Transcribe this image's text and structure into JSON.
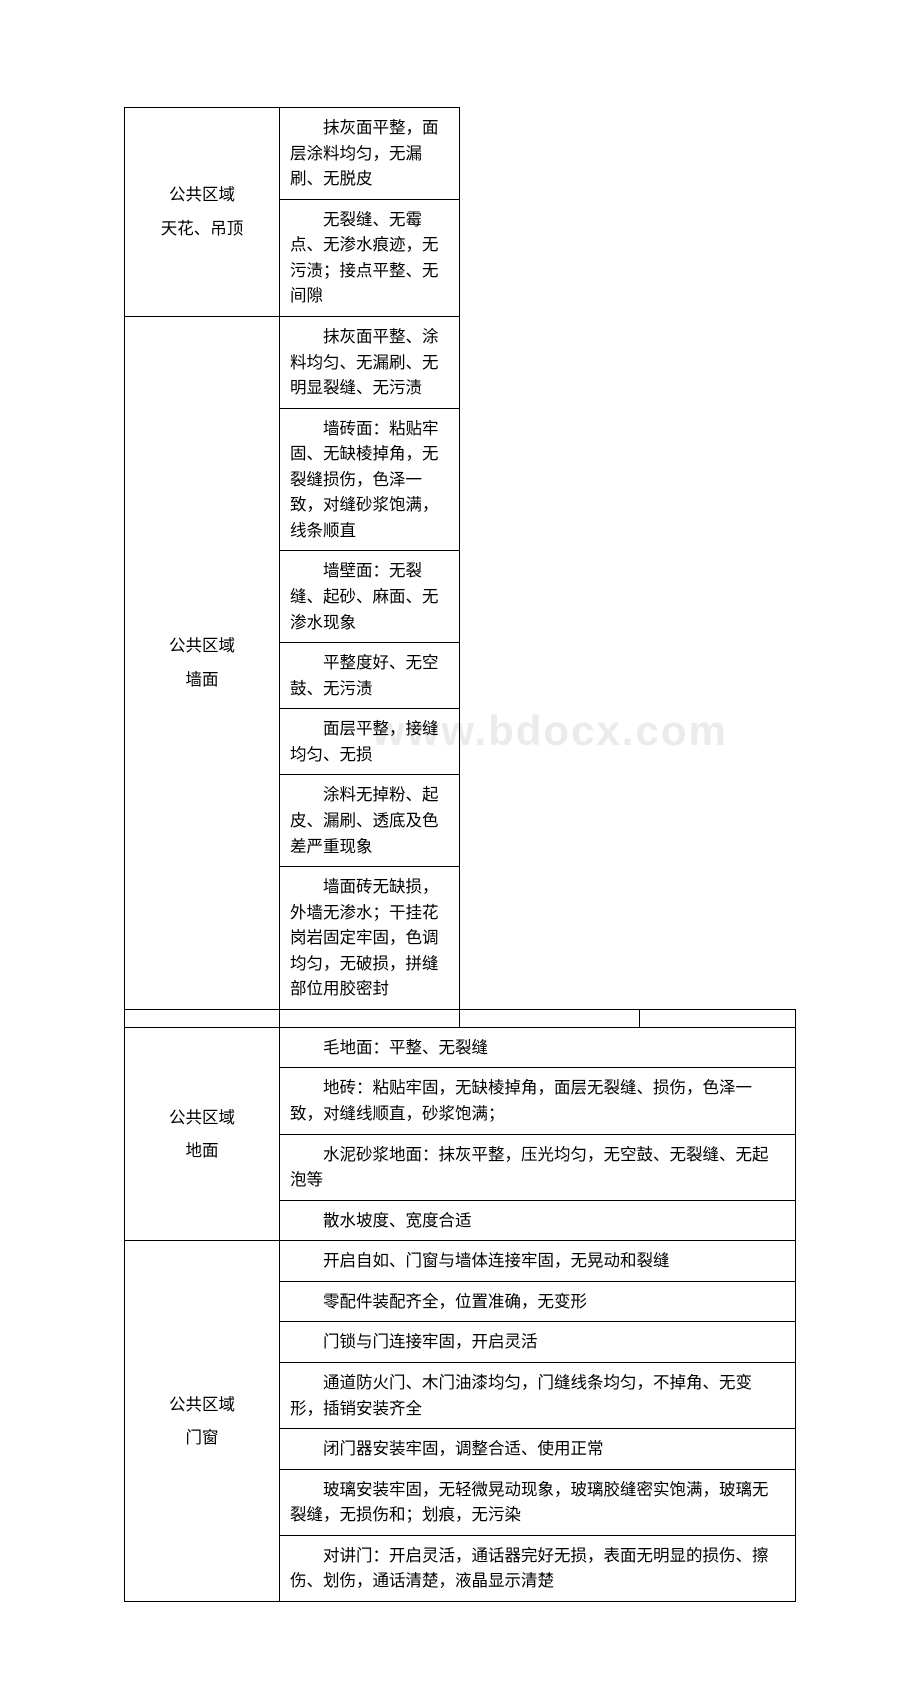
{
  "watermark": "www.bdocx.com",
  "sections": [
    {
      "category_line1": "公共区域",
      "category_line2": "天花、吊顶",
      "items": [
        "抹灰面平整，面层涂料均匀，无漏刷、无脱皮",
        "无裂缝、无霉点、无渗水痕迹，无污渍；接点平整、无间隙"
      ]
    },
    {
      "category_line1": "公共区域",
      "category_line2": "墙面",
      "items": [
        "抹灰面平整、涂料均匀、无漏刷、无明显裂缝、无污渍",
        "墙砖面：粘贴牢固、无缺棱掉角，无裂缝损伤，色泽一致，对缝砂浆饱满，线条顺直",
        "墙壁面：无裂缝、起砂、麻面、无渗水现象",
        "平整度好、无空鼓、无污渍",
        "面层平整，接缝均匀、无损",
        "涂料无掉粉、起皮、漏刷、透底及色差严重现象",
        "墙面砖无缺损，外墙无渗水；干挂花岗岩固定牢固，色调均匀，无破损，拼缝部位用胶密封"
      ]
    },
    {
      "category_line1": "公共区域",
      "category_line2": "地面",
      "items": [
        "毛地面：平整、无裂缝",
        "地砖：粘贴牢固，无缺棱掉角，面层无裂缝、损伤，色泽一致，对缝线顺直，砂浆饱满；",
        "水泥砂浆地面：抹灰平整，压光均匀，无空鼓、无裂缝、无起泡等",
        "散水坡度、宽度合适"
      ]
    },
    {
      "category_line1": "公共区域",
      "category_line2": "门窗",
      "items": [
        "开启自如、门窗与墙体连接牢固，无晃动和裂缝",
        "零配件装配齐全，位置准确，无变形",
        "门锁与门连接牢固，开启灵活",
        "通道防火门、木门油漆均匀，门缝线条均匀，不掉角、无变形，插销安装齐全",
        "闭门器安装牢固，调整合适、使用正常",
        "玻璃安装牢固，无轻微晃动现象，玻璃胶缝密实饱满，玻璃无裂缝，无损伤和；划痕，无污染",
        "对讲门：开启灵活，通话器完好无损，表面无明显的损伤、擦伤、划伤，通话清楚，液晶显示清楚"
      ]
    }
  ]
}
